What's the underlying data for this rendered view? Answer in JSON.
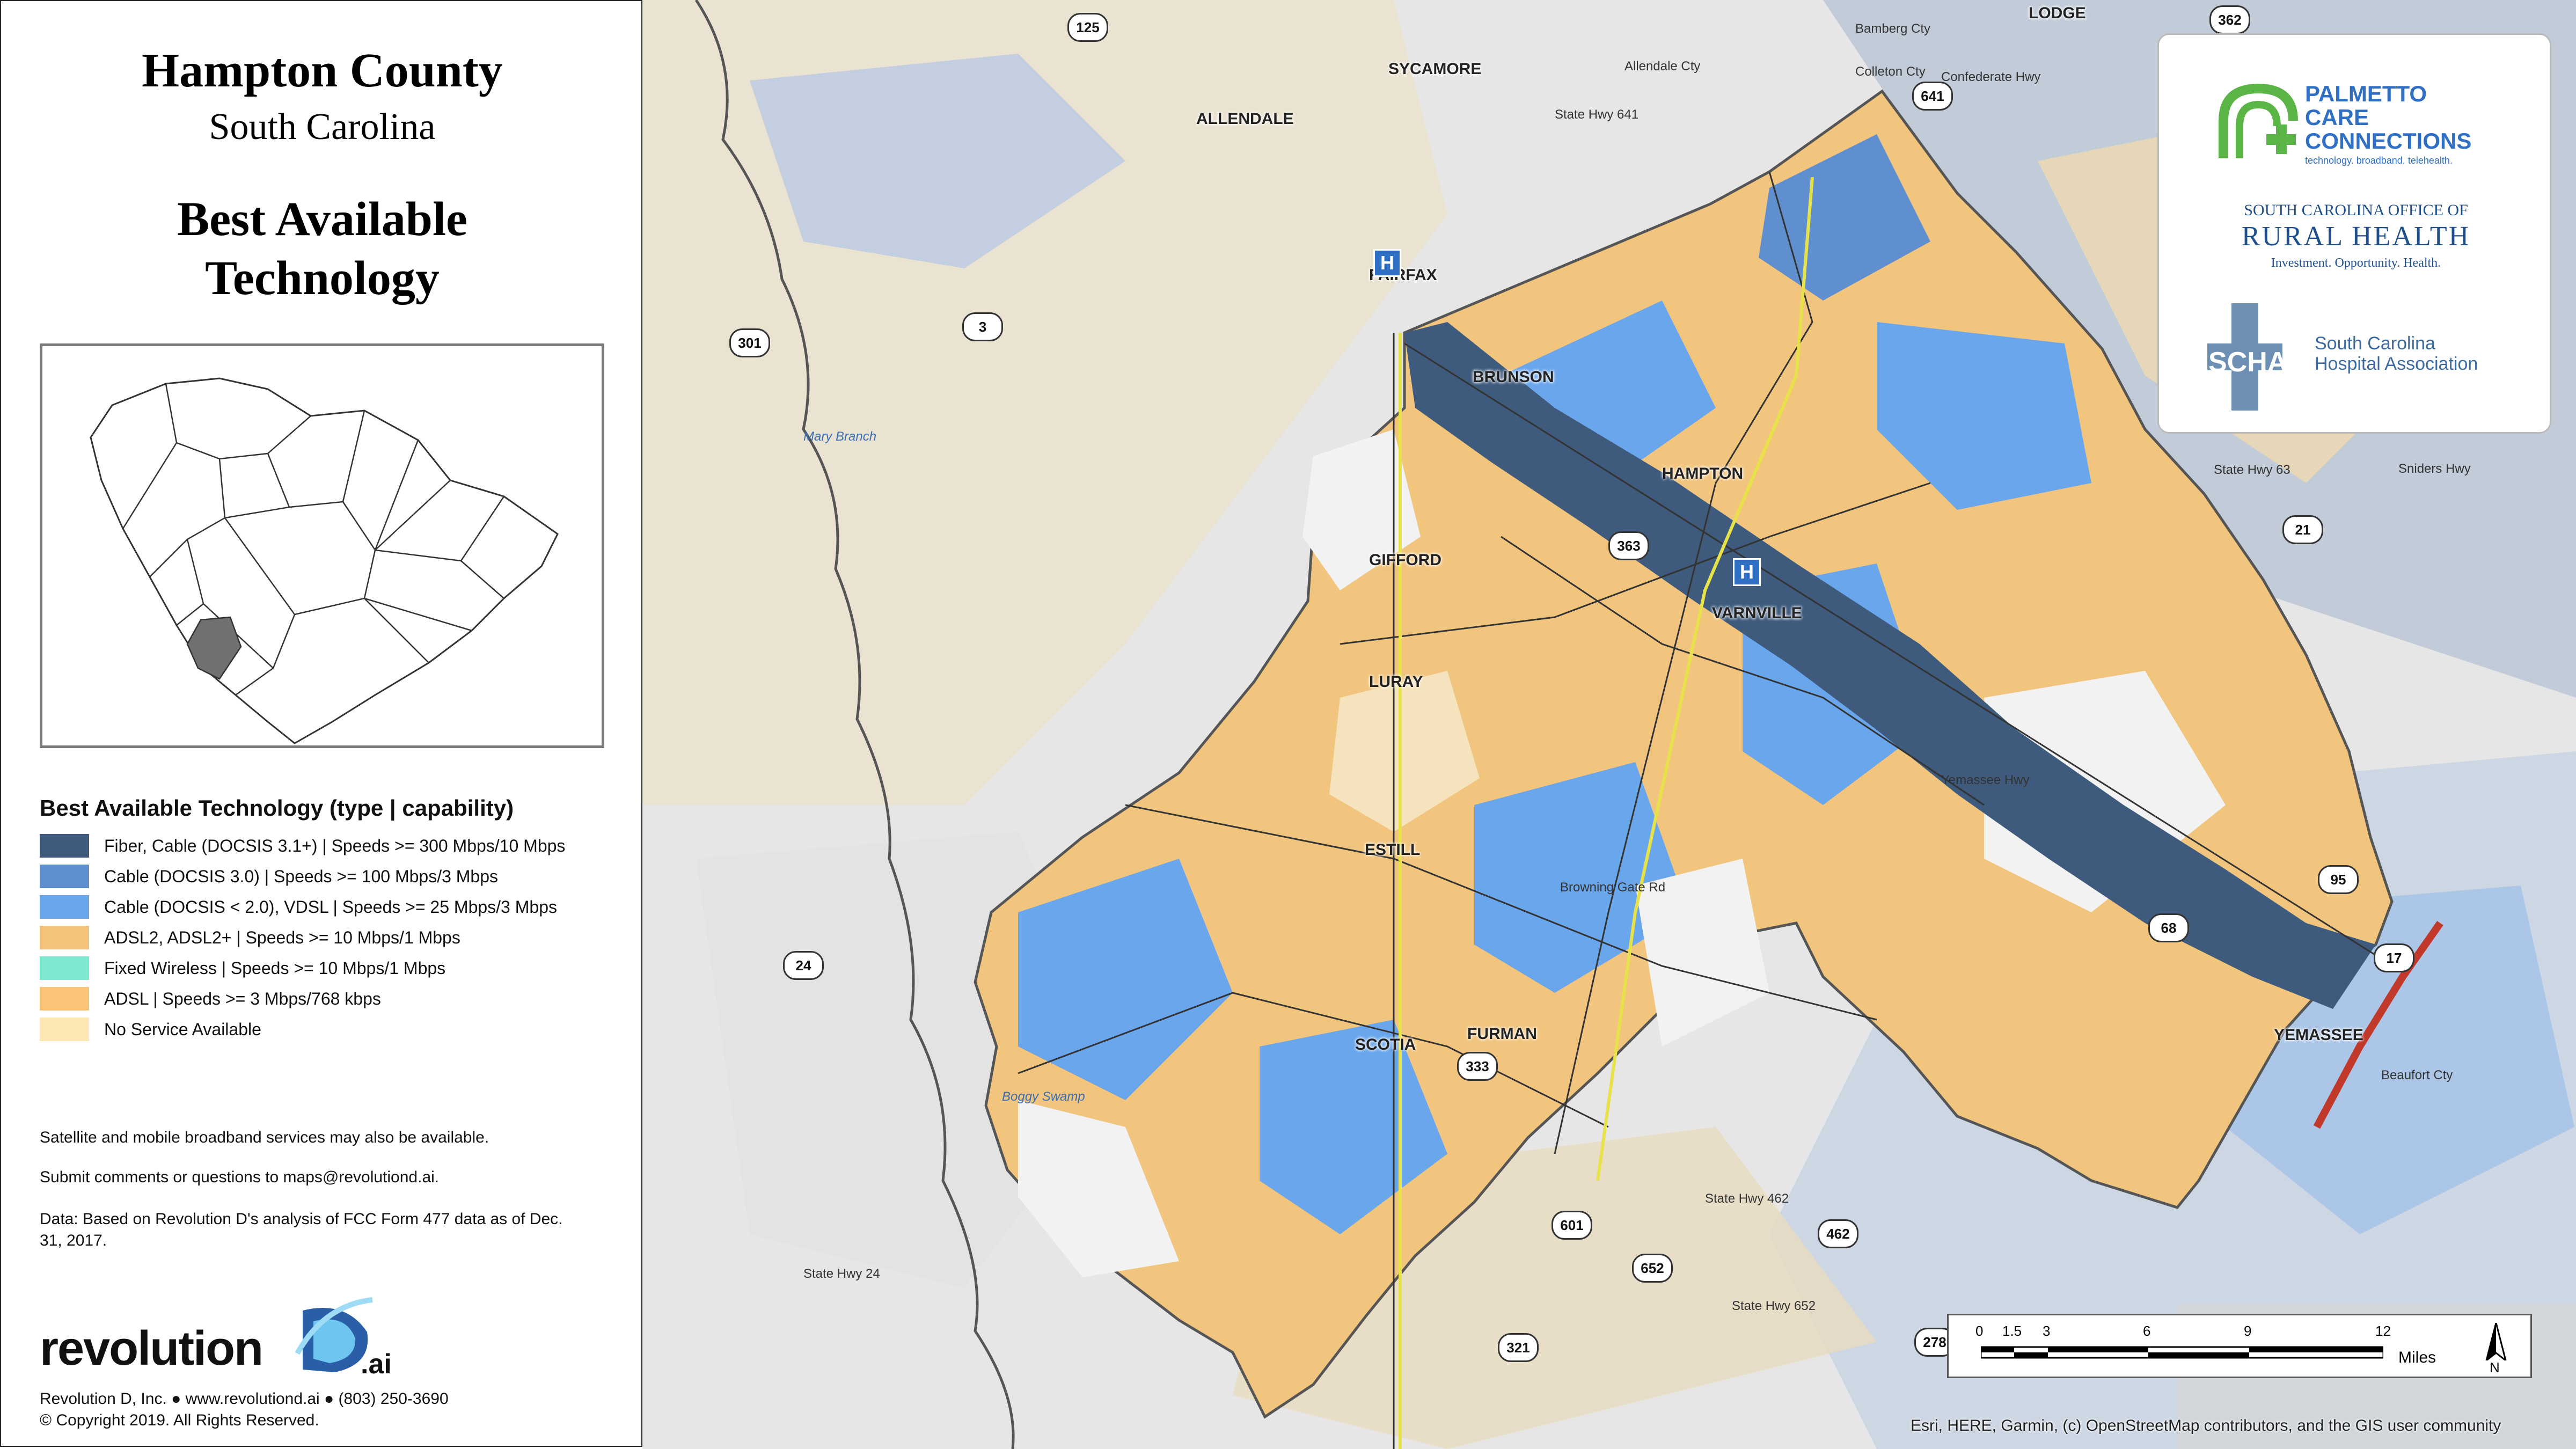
{
  "panel": {
    "county": "Hampton County",
    "state": "South Carolina",
    "title_line1": "Best Available",
    "title_line2": "Technology"
  },
  "legend": {
    "title": "Best Available Technology (type | capability)",
    "items": [
      {
        "label": "Fiber, Cable (DOCSIS 3.1+) | Speeds >= 300 Mbps/10 Mbps",
        "color": "#3e5b7e"
      },
      {
        "label": "Cable (DOCSIS 3.0) | Speeds >= 100 Mbps/3 Mbps",
        "color": "#5f8fcf"
      },
      {
        "label": "Cable (DOCSIS < 2.0), VDSL | Speeds >= 25 Mbps/3 Mbps",
        "color": "#6aa6ec"
      },
      {
        "label": "ADSL2, ADSL2+ | Speeds >= 10 Mbps/1 Mbps",
        "color": "#f4c37a"
      },
      {
        "label": "Fixed Wireless | Speeds >= 10 Mbps/1 Mbps",
        "color": "#7ee8d2"
      },
      {
        "label": " ADSL | Speeds >= 3 Mbps/768 kbps",
        "color": "#f9c477"
      },
      {
        "label": "No Service Available",
        "color": "#fbe6b4"
      }
    ]
  },
  "notes": {
    "satellite": "Satellite and mobile broadband services may also be available.",
    "comments": "Submit comments or questions to maps@revolutiond.ai.",
    "data_source": "Data: Based on Revolution D's analysis of FCC Form 477 data as of Dec. 31, 2017."
  },
  "brand": {
    "name": "revolution",
    "suffix": ".ai",
    "contact": "Revolution D, Inc. ● www.revolutiond.ai ● (803) 250-3690",
    "copyright": "© Copyright 2019. All Rights Reserved."
  },
  "partners": {
    "pcc_line1": "PALMETTO",
    "pcc_line2": "CARE",
    "pcc_line3": "CONNECTIONS",
    "pcc_tag": "technology. broadband. telehealth.",
    "orh_line1": "SOUTH CAROLINA OFFICE OF",
    "orh_line2": "RURAL HEALTH",
    "orh_tag": "Investment. Opportunity. Health.",
    "scha_abbr": "SCHA",
    "scha_line1": "South Carolina",
    "scha_line2": "Hospital Association"
  },
  "towns": [
    {
      "name": "SYCAMORE"
    },
    {
      "name": "ALLENDALE"
    },
    {
      "name": "FAIRFAX"
    },
    {
      "name": "BRUNSON"
    },
    {
      "name": "HAMPTON"
    },
    {
      "name": "GIFFORD"
    },
    {
      "name": "VARNVILLE"
    },
    {
      "name": "LURAY"
    },
    {
      "name": "ESTILL"
    },
    {
      "name": "SCOTIA"
    },
    {
      "name": "FURMAN"
    },
    {
      "name": "YEMASSEE"
    },
    {
      "name": "LODGE"
    }
  ],
  "shields": [
    "125",
    "641",
    "362",
    "301",
    "3",
    "363",
    "68",
    "95",
    "17",
    "21",
    "24",
    "333",
    "601",
    "462",
    "652",
    "321",
    "278"
  ],
  "road_labels": [
    "Mary Branch",
    "Boggy Swamp",
    "State Hwy 641",
    "State Hwy 63",
    "Bamberg Cty",
    "Colleton Cty",
    "Beaufort Cty",
    "Allendale Cty",
    "Confederate Hwy",
    "Sniders Hwy",
    "Yemassee Hwy",
    "Browning Gate Rd",
    "State Hwy 462",
    "State Hwy 652",
    "State Hwy 24"
  ],
  "scale": {
    "ticks": [
      "0",
      "1.5",
      "3",
      "6",
      "9",
      "12"
    ],
    "unit": "Miles",
    "north": "N"
  },
  "attribution": "Esri, HERE, Garmin, (c) OpenStreetMap contributors, and the GIS user community",
  "hospital_symbol": "H"
}
